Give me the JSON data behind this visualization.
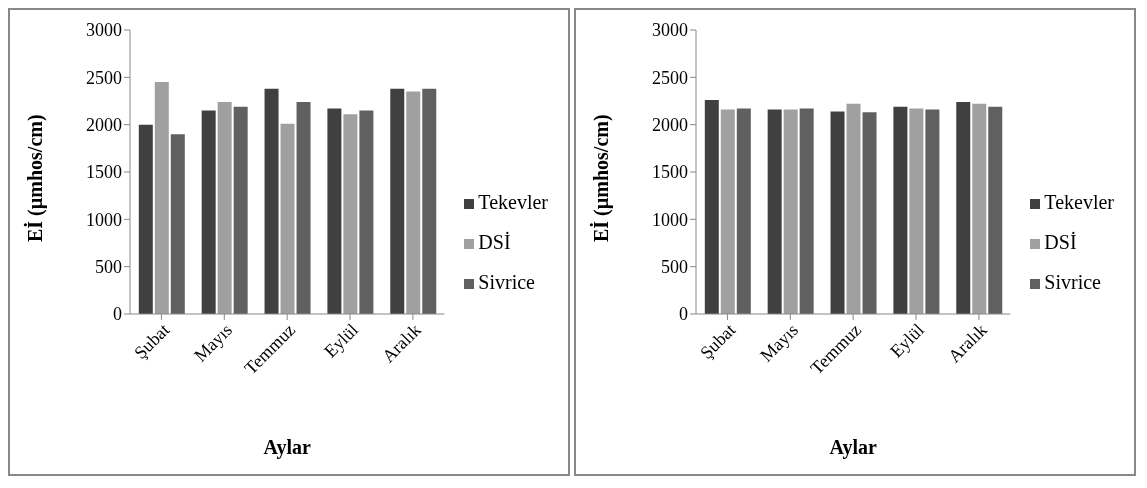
{
  "chart_data": [
    {
      "type": "bar",
      "xlabel": "Aylar",
      "ylabel": "Eİ (µmhos/cm)",
      "categories": [
        "Şubat",
        "Mayıs",
        "Temmuz",
        "Eylül",
        "Aralık"
      ],
      "ylim": [
        0,
        3000
      ],
      "yticks": [
        0,
        500,
        1000,
        1500,
        2000,
        2500,
        3000
      ],
      "grid": false,
      "legend": "right",
      "series": [
        {
          "name": "Tekevler",
          "color": "#404040",
          "values": [
            2000,
            2150,
            2380,
            2170,
            2380
          ]
        },
        {
          "name": "DSİ",
          "color": "#a0a0a0",
          "values": [
            2450,
            2240,
            2010,
            2110,
            2350
          ]
        },
        {
          "name": "Sivrice",
          "color": "#606060",
          "values": [
            1900,
            2190,
            2240,
            2150,
            2380
          ]
        }
      ]
    },
    {
      "type": "bar",
      "xlabel": "Aylar",
      "ylabel": "Eİ (µmhos/cm)",
      "categories": [
        "Şubat",
        "Mayıs",
        "Temmuz",
        "Eylül",
        "Aralık"
      ],
      "ylim": [
        0,
        3000
      ],
      "yticks": [
        0,
        500,
        1000,
        1500,
        2000,
        2500,
        3000
      ],
      "grid": false,
      "legend": "right",
      "series": [
        {
          "name": "Tekevler",
          "color": "#404040",
          "values": [
            2260,
            2160,
            2140,
            2190,
            2240
          ]
        },
        {
          "name": "DSİ",
          "color": "#a0a0a0",
          "values": [
            2160,
            2160,
            2220,
            2170,
            2220
          ]
        },
        {
          "name": "Sivrice",
          "color": "#606060",
          "values": [
            2170,
            2170,
            2130,
            2160,
            2190
          ]
        }
      ]
    }
  ]
}
